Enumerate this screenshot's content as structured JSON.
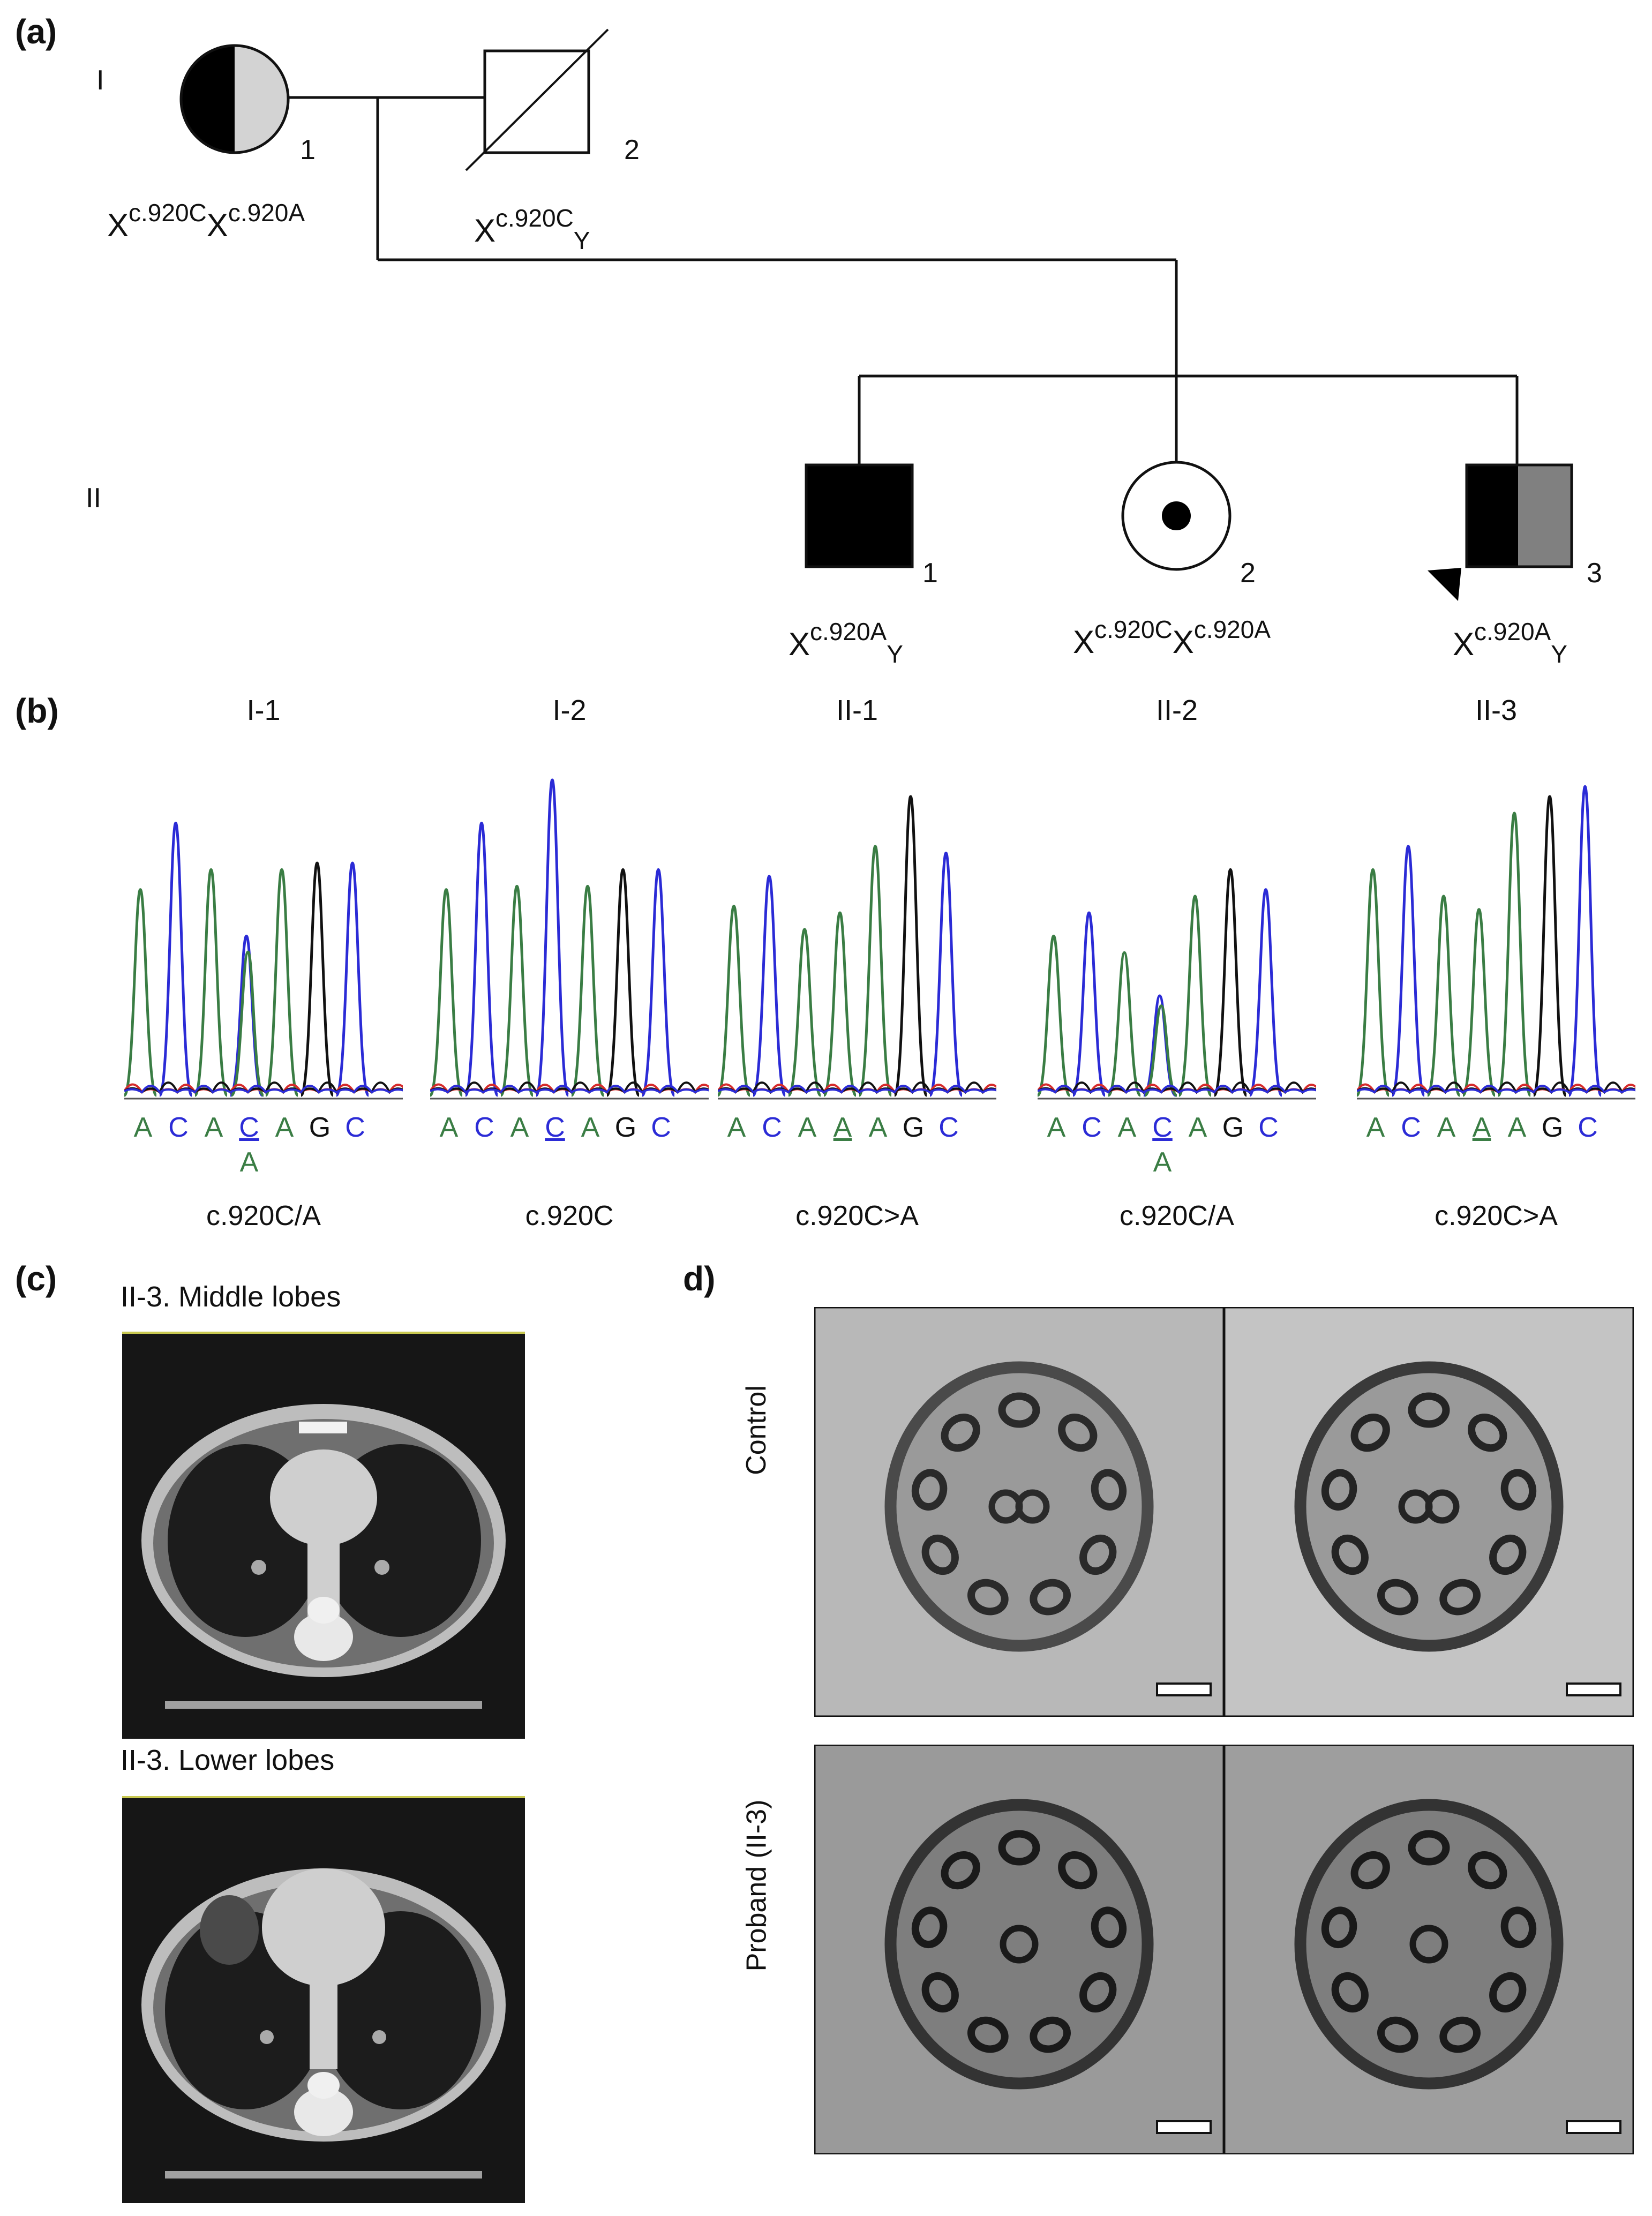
{
  "panels": {
    "a": "(a)",
    "b": "(b)",
    "c": "(c)",
    "d": "d)"
  },
  "pedigree": {
    "generations": [
      "I",
      "II"
    ],
    "individuals": [
      {
        "id": "I-1",
        "number": "1",
        "genotype": {
          "base": "X",
          "sup1": "c.920C",
          "mid": "X",
          "sup2": "c.920A",
          "sub": ""
        }
      },
      {
        "id": "I-2",
        "number": "2",
        "genotype": {
          "base": "X",
          "sup1": "c.920C",
          "mid": "",
          "sup2": "",
          "sub": "Y"
        }
      },
      {
        "id": "II-1",
        "number": "1",
        "genotype": {
          "base": "X",
          "sup1": "c.920A",
          "mid": "",
          "sup2": "",
          "sub": "Y"
        }
      },
      {
        "id": "II-2",
        "number": "2",
        "genotype": {
          "base": "X",
          "sup1": "c.920C",
          "mid": "X",
          "sup2": "c.920A",
          "sub": ""
        }
      },
      {
        "id": "II-3",
        "number": "3",
        "genotype": {
          "base": "X",
          "sup1": "c.920A",
          "mid": "",
          "sup2": "",
          "sub": "Y"
        }
      }
    ]
  },
  "sequencing": [
    {
      "label": "I-1",
      "bases": [
        "A",
        "C",
        "A",
        "C",
        "A",
        "G",
        "C"
      ],
      "alt": "A",
      "result": "c.920C/A"
    },
    {
      "label": "I-2",
      "bases": [
        "A",
        "C",
        "A",
        "C",
        "A",
        "G",
        "C"
      ],
      "alt": "",
      "result": "c.920C"
    },
    {
      "label": "II-1",
      "bases": [
        "A",
        "C",
        "A",
        "A",
        "A",
        "G",
        "C"
      ],
      "alt": "",
      "result": "c.920C>A"
    },
    {
      "label": "II-2",
      "bases": [
        "A",
        "C",
        "A",
        "C",
        "A",
        "G",
        "C"
      ],
      "alt": "A",
      "result": "c.920C/A"
    },
    {
      "label": "II-3",
      "bases": [
        "A",
        "C",
        "A",
        "A",
        "A",
        "G",
        "C"
      ],
      "alt": "",
      "result": "c.920C>A"
    }
  ],
  "base_colors": {
    "A": "#3a7d44",
    "C": "#2b2bd6",
    "G": "#111111",
    "T": "#d62b2b"
  },
  "ct": {
    "middle_title": "II-3. Middle lobes",
    "lower_title": "II-3. Lower lobes"
  },
  "em": {
    "control_label": "Control",
    "proband_label": "Proband (II-3)"
  }
}
